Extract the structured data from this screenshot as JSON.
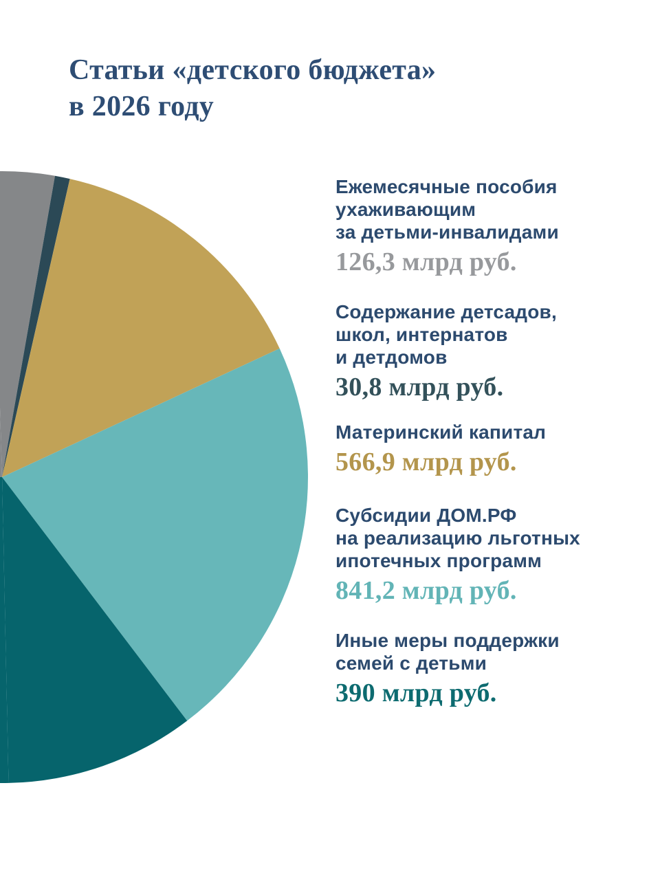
{
  "header": {
    "title_line1": "Статьи «детского бюджета»",
    "title_line2": "в 2026 году"
  },
  "chart_data": {
    "type": "pie",
    "title": "Статьи «детского бюджета» в 2026 году",
    "unit": "млрд руб.",
    "legend_position": "right",
    "pie_total_for_angles": 3900,
    "start_angle_deg": -1.7,
    "clip_note": "pie center sits on the left canvas edge; only the right half of the pie is visible, listed slices cover about half of the full circle",
    "slices": [
      {
        "label": "Ежемесячные пособия ухаживающим за детьми-инвалидами",
        "label_lines": [
          "Ежемесячные пособия",
          "ухаживающим",
          "за детьми-инвалидами"
        ],
        "value": 126.3,
        "value_text": "126,3 млрд руб.",
        "color": "#858789",
        "value_color": "#97999c"
      },
      {
        "label": "Содержание детсадов, школ, интернатов и детдомов",
        "label_lines": [
          "Содержание детсадов,",
          "школ, интернатов",
          "и детдомов"
        ],
        "value": 30.8,
        "value_text": "30,8 млрд руб.",
        "color": "#2b4956",
        "value_color": "#33515a"
      },
      {
        "label": "Материнский капитал",
        "label_lines": [
          "Материнский капитал"
        ],
        "value": 566.9,
        "value_text": "566,9 млрд руб.",
        "color": "#c1a257",
        "value_color": "#b3954c"
      },
      {
        "label": "Субсидии ДОМ.РФ на реализацию льготных ипотечных программ",
        "label_lines": [
          "Субсидии ДОМ.РФ",
          "на реализацию льготных",
          "ипотечных программ"
        ],
        "value": 841.2,
        "value_text": "841,2 млрд руб.",
        "color": "#67b7b9",
        "value_color": "#62b4b6"
      },
      {
        "label": "Иные меры поддержки семей с детьми",
        "label_lines": [
          "Иные меры поддержки",
          "семей с детьми"
        ],
        "value": 390,
        "value_text": "390 млрд руб.",
        "color": "#06646c",
        "value_color": "#0d6b70"
      }
    ],
    "colors": {
      "label_text": "#2c4a6e",
      "title_text": "#2e4d74",
      "background": "#ffffff"
    }
  }
}
